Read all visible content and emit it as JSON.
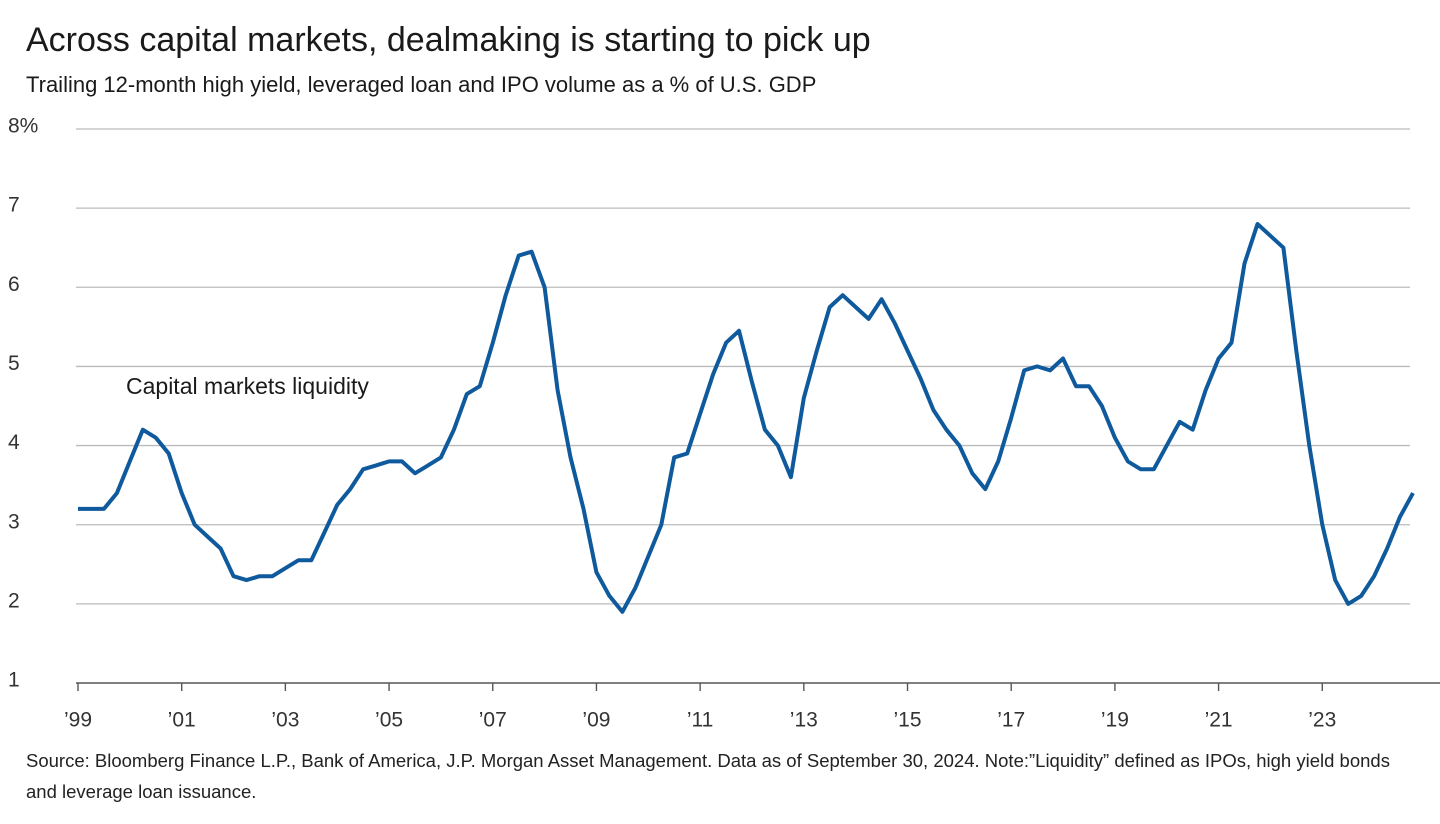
{
  "chart_data": {
    "type": "line",
    "title": "Across capital markets, dealmaking is starting to pick up",
    "subtitle": "Trailing 12-month high yield, leveraged loan and IPO volume as a % of U.S. GDP",
    "annotation": "Capital markets liquidity",
    "source": "Source: Bloomberg Finance L.P., Bank of America, J.P. Morgan Asset Management. Data as of September 30, 2024. Note:”Liquidity” defined as IPOs, high yield bonds and leverage loan issuance.",
    "x": [
      1999,
      1999.25,
      1999.5,
      1999.75,
      2000,
      2000.25,
      2000.5,
      2000.75,
      2001,
      2001.25,
      2001.5,
      2001.75,
      2002,
      2002.25,
      2002.5,
      2002.75,
      2003,
      2003.25,
      2003.5,
      2003.75,
      2004,
      2004.25,
      2004.5,
      2004.75,
      2005,
      2005.25,
      2005.5,
      2005.75,
      2006,
      2006.25,
      2006.5,
      2006.75,
      2007,
      2007.25,
      2007.5,
      2007.75,
      2008,
      2008.25,
      2008.5,
      2008.75,
      2009,
      2009.25,
      2009.5,
      2009.75,
      2010,
      2010.25,
      2010.5,
      2010.75,
      2011,
      2011.25,
      2011.5,
      2011.75,
      2012,
      2012.25,
      2012.5,
      2012.75,
      2013,
      2013.25,
      2013.5,
      2013.75,
      2014,
      2014.25,
      2014.5,
      2014.75,
      2015,
      2015.25,
      2015.5,
      2015.75,
      2016,
      2016.25,
      2016.5,
      2016.75,
      2017,
      2017.25,
      2017.5,
      2017.75,
      2018,
      2018.25,
      2018.5,
      2018.75,
      2019,
      2019.25,
      2019.5,
      2019.75,
      2020,
      2020.25,
      2020.5,
      2020.75,
      2021,
      2021.25,
      2021.5,
      2021.75,
      2022,
      2022.25,
      2022.5,
      2022.75,
      2023,
      2023.25,
      2023.5,
      2023.75,
      2024,
      2024.25,
      2024.5,
      2024.75
    ],
    "series": [
      {
        "name": "Capital markets liquidity",
        "color": "#0e5a9c",
        "values": [
          3.2,
          3.2,
          3.2,
          3.4,
          3.8,
          4.2,
          4.1,
          3.9,
          3.4,
          3.0,
          2.85,
          2.7,
          2.35,
          2.3,
          2.35,
          2.35,
          2.45,
          2.55,
          2.55,
          2.9,
          3.25,
          3.45,
          3.7,
          3.75,
          3.8,
          3.8,
          3.65,
          3.75,
          3.85,
          4.2,
          4.65,
          4.75,
          5.3,
          5.9,
          6.4,
          6.45,
          6.0,
          4.7,
          3.85,
          3.2,
          2.4,
          2.1,
          1.9,
          2.2,
          2.6,
          3.0,
          3.85,
          3.9,
          4.4,
          4.9,
          5.3,
          5.45,
          4.8,
          4.2,
          4.0,
          3.6,
          4.6,
          5.2,
          5.75,
          5.9,
          5.75,
          5.6,
          5.85,
          5.55,
          5.2,
          4.85,
          4.45,
          4.2,
          4.0,
          3.65,
          3.45,
          3.8,
          4.35,
          4.95,
          5.0,
          4.95,
          5.1,
          4.75,
          4.75,
          4.5,
          4.1,
          3.8,
          3.7,
          3.7,
          4.0,
          4.3,
          4.2,
          4.7,
          5.1,
          5.3,
          6.3,
          6.8,
          6.65,
          6.5,
          5.2,
          4.0,
          3.0,
          2.3,
          2.0,
          2.1,
          2.35,
          2.7,
          3.1,
          3.4
        ]
      }
    ],
    "xlim": [
      1999,
      2024.75
    ],
    "xticks": [
      {
        "value": 1999,
        "label": "’99"
      },
      {
        "value": 2001,
        "label": "’01"
      },
      {
        "value": 2003,
        "label": "’03"
      },
      {
        "value": 2005,
        "label": "’05"
      },
      {
        "value": 2007,
        "label": "’07"
      },
      {
        "value": 2009,
        "label": "’09"
      },
      {
        "value": 2011,
        "label": "’11"
      },
      {
        "value": 2013,
        "label": "’13"
      },
      {
        "value": 2015,
        "label": "’15"
      },
      {
        "value": 2017,
        "label": "’17"
      },
      {
        "value": 2019,
        "label": "’19"
      },
      {
        "value": 2021,
        "label": "’21"
      },
      {
        "value": 2023,
        "label": "’23"
      }
    ],
    "ylim": [
      1,
      8
    ],
    "yticks": [
      1,
      2,
      3,
      4,
      5,
      6,
      {
        "value": 7,
        "label": "7"
      },
      {
        "value": 8,
        "label": "8%"
      }
    ],
    "grid": true
  }
}
